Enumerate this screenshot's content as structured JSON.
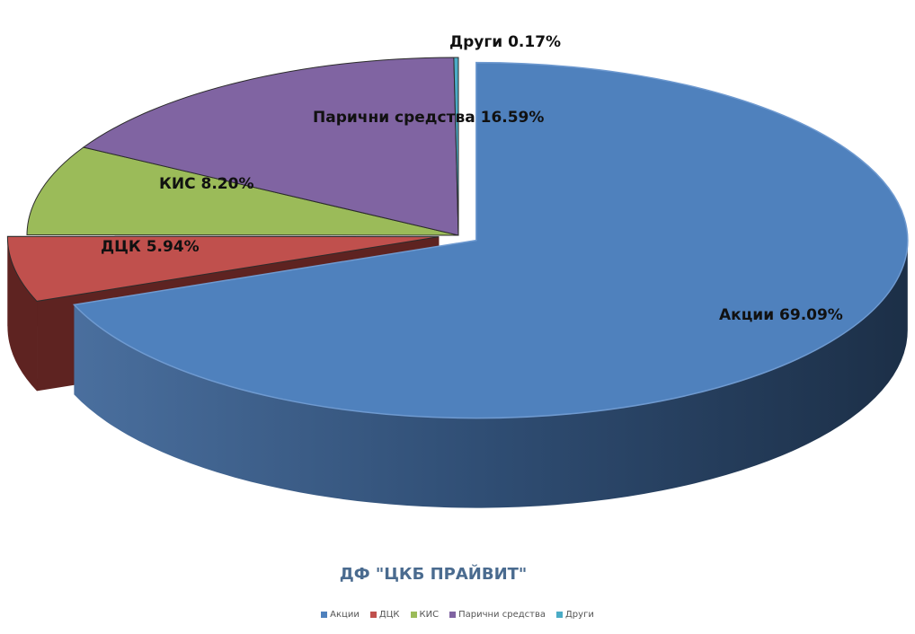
{
  "chart_data": {
    "type": "pie",
    "title": "ДФ \"ЦКБ ПРАЙВИТ\"",
    "slices": [
      {
        "name": "Акции",
        "value": 69.09,
        "label": "Акции 69.09%",
        "color": "#4f81bd",
        "side": "#2a4466"
      },
      {
        "name": "ДЦК",
        "value": 5.94,
        "label": "ДЦК 5.94%",
        "color": "#c0504d",
        "side": "#5e2321"
      },
      {
        "name": "КИС",
        "value": 8.2,
        "label": "КИС 8.20%",
        "color": "#9bbb59",
        "side": "#4e6128"
      },
      {
        "name": "Парични средства",
        "value": 16.59,
        "label": "Парични средства 16.59%",
        "color": "#8064a2",
        "side": "#3f3052"
      },
      {
        "name": "Други",
        "value": 0.17,
        "label": "Други 0.17%",
        "color": "#4bacc6",
        "side": "#215f6f"
      }
    ],
    "legend": [
      "Акции",
      "ДЦК",
      "КИС",
      "Парични средства",
      "Други"
    ],
    "legend_position": "bottom",
    "exploded": [
      "Акции",
      "ДЦК"
    ]
  }
}
